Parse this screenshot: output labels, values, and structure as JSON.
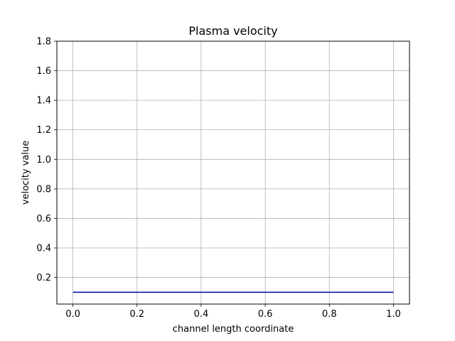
{
  "chart_data": {
    "type": "line",
    "title": "Plasma velocity",
    "xlabel": "channel length coordinate",
    "ylabel": "velocity value",
    "xlim": [
      -0.05,
      1.05
    ],
    "ylim": [
      0.02,
      1.8
    ],
    "x_ticks": [
      0.0,
      0.2,
      0.4,
      0.6,
      0.8,
      1.0
    ],
    "x_tick_labels": [
      "0.0",
      "0.2",
      "0.4",
      "0.6",
      "0.8",
      "1.0"
    ],
    "y_ticks": [
      0.2,
      0.4,
      0.6,
      0.8,
      1.0,
      1.2,
      1.4,
      1.6,
      1.8
    ],
    "y_tick_labels": [
      "0.2",
      "0.4",
      "0.6",
      "0.8",
      "1.0",
      "1.2",
      "1.4",
      "1.6",
      "1.8"
    ],
    "grid": true,
    "series": [
      {
        "color": "#0000aa",
        "x": [
          0.0,
          0.2,
          0.4,
          0.6,
          0.8,
          1.0
        ],
        "y": [
          0.1,
          0.1,
          0.1,
          0.1,
          0.1,
          0.1
        ]
      }
    ]
  }
}
